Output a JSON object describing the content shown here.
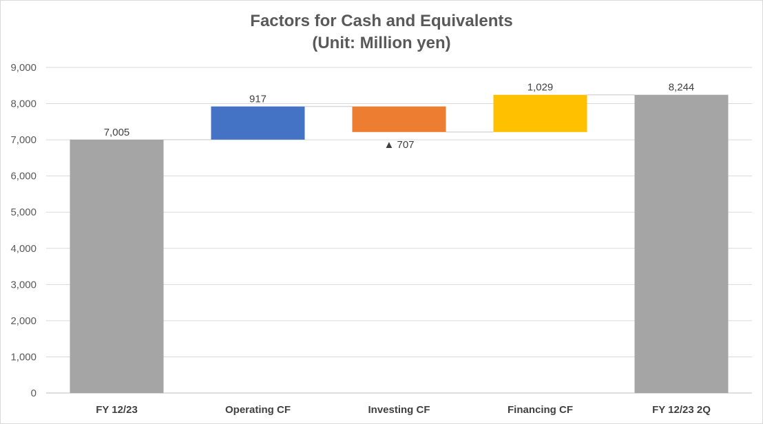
{
  "chart_data": {
    "type": "waterfall",
    "title": "Factors for Cash and Equivalents",
    "subtitle": "(Unit: Million yen)",
    "xlabel": "",
    "ylabel": "",
    "ylim": [
      0,
      9000
    ],
    "yticks": [
      0,
      1000,
      2000,
      3000,
      4000,
      5000,
      6000,
      7000,
      8000,
      9000
    ],
    "ytick_labels": [
      "0",
      "1,000",
      "2,000",
      "3,000",
      "4,000",
      "5,000",
      "6,000",
      "7,000",
      "8,000",
      "9,000"
    ],
    "grid": true,
    "legend": "none",
    "categories": [
      "FY 12/23",
      "Operating CF",
      "Investing CF",
      "Financing CF",
      "FY 12/23 2Q"
    ],
    "bars": [
      {
        "category": "FY 12/23",
        "kind": "total",
        "start": 0,
        "end": 7005,
        "label": "7,005",
        "color": "#a5a5a5"
      },
      {
        "category": "Operating CF",
        "kind": "change",
        "start": 7005,
        "end": 7922,
        "value": 917,
        "label": "917",
        "color": "#4472c4"
      },
      {
        "category": "Investing CF",
        "kind": "change",
        "start": 7922,
        "end": 7215,
        "value": -707,
        "label": "▲ 707",
        "color": "#ed7d31"
      },
      {
        "category": "Financing CF",
        "kind": "change",
        "start": 7215,
        "end": 8244,
        "value": 1029,
        "label": "1,029",
        "color": "#ffc000"
      },
      {
        "category": "FY 12/23 2Q",
        "kind": "total",
        "start": 0,
        "end": 8244,
        "label": "8,244",
        "color": "#a5a5a5"
      }
    ]
  }
}
